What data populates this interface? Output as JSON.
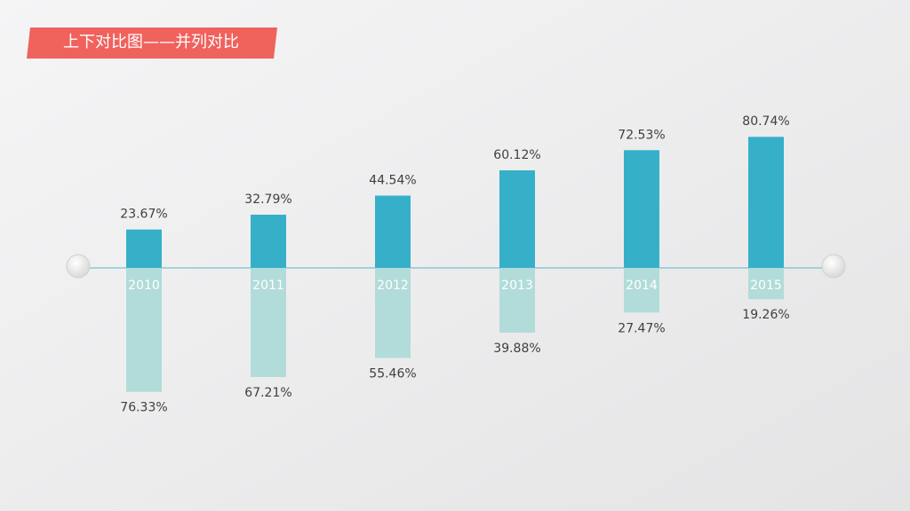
{
  "chart_data": {
    "type": "bar",
    "title": "上下对比图——并列对比",
    "categories": [
      "2010",
      "2011",
      "2012",
      "2013",
      "2014",
      "2015"
    ],
    "series": [
      {
        "color": "#36b0c9",
        "values": [
          23.67,
          32.79,
          44.54,
          60.12,
          72.53,
          80.74
        ],
        "value_labels": [
          "23.67%",
          "32.79%",
          "44.54%",
          "60.12%",
          "72.53%",
          "80.74%"
        ]
      },
      {
        "color": "#b2dcd9",
        "values": [
          76.33,
          67.21,
          55.46,
          39.88,
          27.47,
          19.26
        ],
        "value_labels": [
          "76.33%",
          "67.21%",
          "55.46%",
          "39.88%",
          "27.47%",
          "19.26%"
        ]
      }
    ]
  }
}
